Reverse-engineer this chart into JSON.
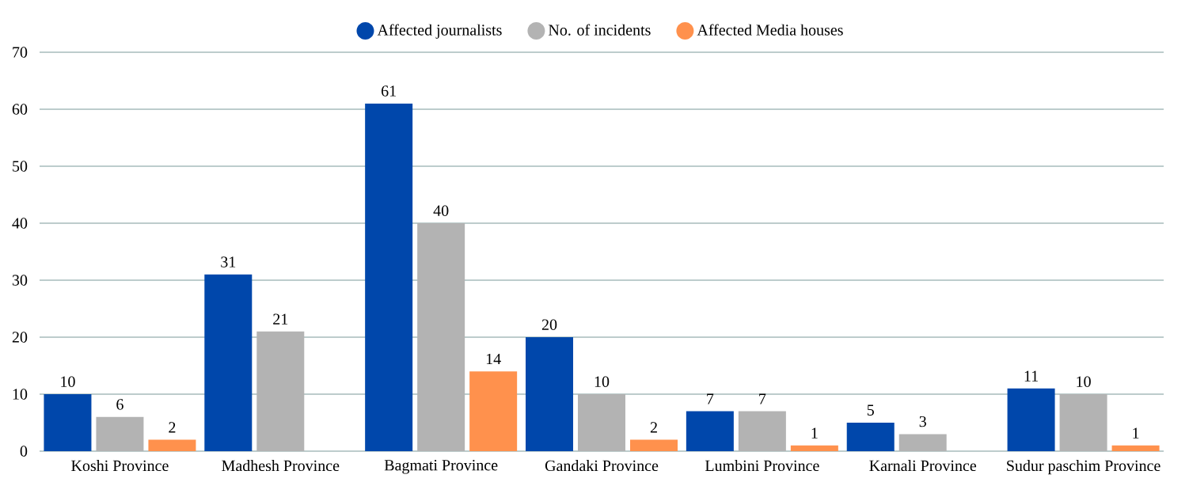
{
  "chart_data": {
    "type": "bar",
    "categories": [
      "Koshi Province",
      "Madhesh Province",
      "Bagmati Province",
      "Gandaki Province",
      "Lumbini Province",
      "Karnali Province",
      "Sudur paschim Province"
    ],
    "series": [
      {
        "name": "Affected journalists",
        "color": "#0047ab",
        "values": [
          10,
          31,
          61,
          20,
          7,
          5,
          11
        ]
      },
      {
        "name": "No. of incidents",
        "color": "#b3b3b3",
        "values": [
          6,
          21,
          40,
          10,
          7,
          3,
          10
        ]
      },
      {
        "name": "Affected Media houses",
        "color": "#ff914d",
        "values": [
          2,
          null,
          14,
          2,
          1,
          null,
          1
        ]
      }
    ],
    "ylim": [
      0,
      70
    ],
    "yticks": [
      0,
      10,
      20,
      30,
      40,
      50,
      60,
      70
    ],
    "grid": "y",
    "legend": "top",
    "data_labels": true
  }
}
